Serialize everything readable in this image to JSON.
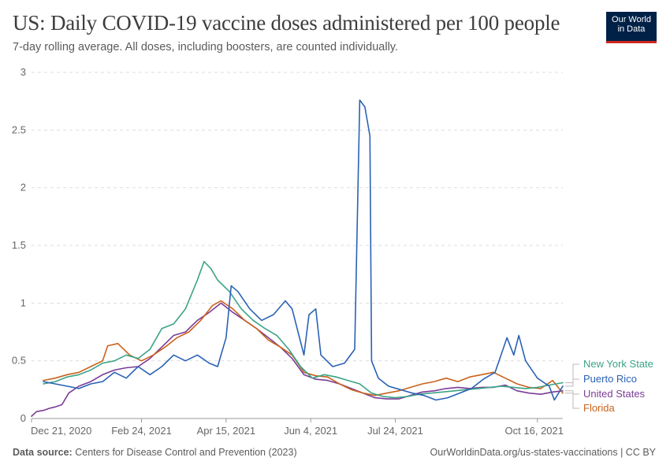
{
  "header": {
    "title": "US: Daily COVID-19 vaccine doses administered per 100 people",
    "subtitle": "7-day rolling average. All doses, including boosters, are counted individually.",
    "logo_line1": "Our World",
    "logo_line2": "in Data"
  },
  "footer": {
    "source_label": "Data source:",
    "source_text": "Centers for Disease Control and Prevention (2023)",
    "link_text": "OurWorldinData.org/us-states-vaccinations | CC BY"
  },
  "colors": {
    "new_york_state": "#3aa387",
    "puerto_rico": "#2a62b4",
    "united_states": "#7b3c96",
    "florida": "#c9621b",
    "logo_bg": "#002147",
    "logo_accent": "#ce261e"
  },
  "chart_data": {
    "type": "line",
    "title": "US: Daily COVID-19 vaccine doses administered per 100 people",
    "subtitle": "7-day rolling average. All doses, including boosters, are counted individually.",
    "x_start": "2020-12-21",
    "x_end": "2021-10-31",
    "x_ticks": [
      "Dec 21, 2020",
      "Feb 24, 2021",
      "Apr 15, 2021",
      "Jun 4, 2021",
      "Jul 24, 2021",
      "Oct 16, 2021"
    ],
    "y_ticks": [
      "0",
      "0.5",
      "1",
      "1.5",
      "2",
      "2.5",
      "3"
    ],
    "ylim": [
      0,
      3
    ],
    "grid": "horizontal dashed",
    "legend": "right, end-of-line labels",
    "series": [
      {
        "name": "New York State",
        "color": "#3aa387",
        "points": [
          [
            "2020-12-28",
            0.3
          ],
          [
            "2021-01-04",
            0.32
          ],
          [
            "2021-01-11",
            0.36
          ],
          [
            "2021-01-18",
            0.38
          ],
          [
            "2021-01-25",
            0.42
          ],
          [
            "2021-02-01",
            0.48
          ],
          [
            "2021-02-08",
            0.5
          ],
          [
            "2021-02-15",
            0.55
          ],
          [
            "2021-02-22",
            0.52
          ],
          [
            "2021-03-01",
            0.6
          ],
          [
            "2021-03-08",
            0.78
          ],
          [
            "2021-03-15",
            0.82
          ],
          [
            "2021-03-22",
            0.95
          ],
          [
            "2021-03-29",
            1.2
          ],
          [
            "2021-04-02",
            1.36
          ],
          [
            "2021-04-06",
            1.3
          ],
          [
            "2021-04-10",
            1.2
          ],
          [
            "2021-04-17",
            1.1
          ],
          [
            "2021-04-24",
            0.95
          ],
          [
            "2021-05-01",
            0.85
          ],
          [
            "2021-05-08",
            0.78
          ],
          [
            "2021-05-15",
            0.72
          ],
          [
            "2021-05-22",
            0.6
          ],
          [
            "2021-05-29",
            0.45
          ],
          [
            "2021-06-05",
            0.35
          ],
          [
            "2021-06-12",
            0.38
          ],
          [
            "2021-06-19",
            0.36
          ],
          [
            "2021-06-26",
            0.33
          ],
          [
            "2021-07-03",
            0.3
          ],
          [
            "2021-07-10",
            0.22
          ],
          [
            "2021-07-17",
            0.19
          ],
          [
            "2021-07-24",
            0.18
          ],
          [
            "2021-07-31",
            0.19
          ],
          [
            "2021-08-07",
            0.21
          ],
          [
            "2021-08-14",
            0.22
          ],
          [
            "2021-08-21",
            0.23
          ],
          [
            "2021-08-28",
            0.24
          ],
          [
            "2021-09-04",
            0.25
          ],
          [
            "2021-09-11",
            0.26
          ],
          [
            "2021-09-18",
            0.27
          ],
          [
            "2021-09-25",
            0.28
          ],
          [
            "2021-10-02",
            0.27
          ],
          [
            "2021-10-09",
            0.26
          ],
          [
            "2021-10-16",
            0.27
          ],
          [
            "2021-10-23",
            0.29
          ],
          [
            "2021-10-31",
            0.31
          ]
        ]
      },
      {
        "name": "Puerto Rico",
        "color": "#2a62b4",
        "points": [
          [
            "2020-12-28",
            0.32
          ],
          [
            "2021-01-04",
            0.3
          ],
          [
            "2021-01-11",
            0.28
          ],
          [
            "2021-01-18",
            0.26
          ],
          [
            "2021-01-25",
            0.3
          ],
          [
            "2021-02-01",
            0.32
          ],
          [
            "2021-02-08",
            0.4
          ],
          [
            "2021-02-15",
            0.35
          ],
          [
            "2021-02-22",
            0.45
          ],
          [
            "2021-03-01",
            0.38
          ],
          [
            "2021-03-08",
            0.45
          ],
          [
            "2021-03-15",
            0.55
          ],
          [
            "2021-03-22",
            0.5
          ],
          [
            "2021-03-29",
            0.55
          ],
          [
            "2021-04-05",
            0.48
          ],
          [
            "2021-04-10",
            0.45
          ],
          [
            "2021-04-15",
            0.7
          ],
          [
            "2021-04-18",
            1.15
          ],
          [
            "2021-04-22",
            1.1
          ],
          [
            "2021-04-29",
            0.95
          ],
          [
            "2021-05-06",
            0.85
          ],
          [
            "2021-05-13",
            0.9
          ],
          [
            "2021-05-20",
            1.02
          ],
          [
            "2021-05-24",
            0.95
          ],
          [
            "2021-05-31",
            0.55
          ],
          [
            "2021-06-03",
            0.9
          ],
          [
            "2021-06-07",
            0.95
          ],
          [
            "2021-06-10",
            0.55
          ],
          [
            "2021-06-17",
            0.45
          ],
          [
            "2021-06-24",
            0.48
          ],
          [
            "2021-06-30",
            0.6
          ],
          [
            "2021-07-03",
            2.76
          ],
          [
            "2021-07-06",
            2.7
          ],
          [
            "2021-07-09",
            2.45
          ],
          [
            "2021-07-10",
            0.5
          ],
          [
            "2021-07-14",
            0.35
          ],
          [
            "2021-07-20",
            0.28
          ],
          [
            "2021-07-27",
            0.25
          ],
          [
            "2021-08-03",
            0.22
          ],
          [
            "2021-08-10",
            0.2
          ],
          [
            "2021-08-17",
            0.16
          ],
          [
            "2021-08-24",
            0.18
          ],
          [
            "2021-08-31",
            0.22
          ],
          [
            "2021-09-07",
            0.26
          ],
          [
            "2021-09-14",
            0.34
          ],
          [
            "2021-09-21",
            0.4
          ],
          [
            "2021-09-28",
            0.7
          ],
          [
            "2021-10-02",
            0.55
          ],
          [
            "2021-10-05",
            0.72
          ],
          [
            "2021-10-09",
            0.5
          ],
          [
            "2021-10-16",
            0.35
          ],
          [
            "2021-10-23",
            0.28
          ],
          [
            "2021-10-26",
            0.16
          ],
          [
            "2021-10-31",
            0.28
          ]
        ]
      },
      {
        "name": "United States",
        "color": "#7b3c96",
        "points": [
          [
            "2020-12-21",
            0.02
          ],
          [
            "2020-12-24",
            0.06
          ],
          [
            "2020-12-28",
            0.07
          ],
          [
            "2021-01-01",
            0.09
          ],
          [
            "2021-01-04",
            0.1
          ],
          [
            "2021-01-08",
            0.12
          ],
          [
            "2021-01-12",
            0.22
          ],
          [
            "2021-01-18",
            0.28
          ],
          [
            "2021-01-25",
            0.32
          ],
          [
            "2021-02-01",
            0.38
          ],
          [
            "2021-02-08",
            0.42
          ],
          [
            "2021-02-15",
            0.44
          ],
          [
            "2021-02-22",
            0.45
          ],
          [
            "2021-03-01",
            0.52
          ],
          [
            "2021-03-08",
            0.62
          ],
          [
            "2021-03-15",
            0.72
          ],
          [
            "2021-03-22",
            0.75
          ],
          [
            "2021-03-29",
            0.85
          ],
          [
            "2021-04-05",
            0.92
          ],
          [
            "2021-04-12",
            1.0
          ],
          [
            "2021-04-19",
            0.92
          ],
          [
            "2021-04-26",
            0.85
          ],
          [
            "2021-05-03",
            0.78
          ],
          [
            "2021-05-10",
            0.7
          ],
          [
            "2021-05-17",
            0.62
          ],
          [
            "2021-05-24",
            0.52
          ],
          [
            "2021-05-31",
            0.38
          ],
          [
            "2021-06-07",
            0.34
          ],
          [
            "2021-06-14",
            0.33
          ],
          [
            "2021-06-21",
            0.3
          ],
          [
            "2021-06-28",
            0.26
          ],
          [
            "2021-07-05",
            0.22
          ],
          [
            "2021-07-12",
            0.18
          ],
          [
            "2021-07-19",
            0.17
          ],
          [
            "2021-07-26",
            0.17
          ],
          [
            "2021-08-02",
            0.2
          ],
          [
            "2021-08-09",
            0.23
          ],
          [
            "2021-08-16",
            0.24
          ],
          [
            "2021-08-23",
            0.26
          ],
          [
            "2021-08-30",
            0.27
          ],
          [
            "2021-09-06",
            0.26
          ],
          [
            "2021-09-13",
            0.27
          ],
          [
            "2021-09-20",
            0.27
          ],
          [
            "2021-09-27",
            0.29
          ],
          [
            "2021-10-04",
            0.24
          ],
          [
            "2021-10-11",
            0.22
          ],
          [
            "2021-10-18",
            0.21
          ],
          [
            "2021-10-25",
            0.23
          ],
          [
            "2021-10-31",
            0.24
          ]
        ]
      },
      {
        "name": "Florida",
        "color": "#c9621b",
        "points": [
          [
            "2020-12-28",
            0.33
          ],
          [
            "2021-01-04",
            0.35
          ],
          [
            "2021-01-11",
            0.38
          ],
          [
            "2021-01-18",
            0.4
          ],
          [
            "2021-01-25",
            0.45
          ],
          [
            "2021-02-01",
            0.5
          ],
          [
            "2021-02-04",
            0.63
          ],
          [
            "2021-02-10",
            0.65
          ],
          [
            "2021-02-17",
            0.55
          ],
          [
            "2021-02-24",
            0.5
          ],
          [
            "2021-03-03",
            0.55
          ],
          [
            "2021-03-10",
            0.62
          ],
          [
            "2021-03-17",
            0.7
          ],
          [
            "2021-03-24",
            0.75
          ],
          [
            "2021-03-31",
            0.85
          ],
          [
            "2021-04-07",
            0.98
          ],
          [
            "2021-04-12",
            1.02
          ],
          [
            "2021-04-19",
            0.95
          ],
          [
            "2021-04-26",
            0.85
          ],
          [
            "2021-05-03",
            0.78
          ],
          [
            "2021-05-10",
            0.68
          ],
          [
            "2021-05-17",
            0.62
          ],
          [
            "2021-05-24",
            0.55
          ],
          [
            "2021-05-31",
            0.4
          ],
          [
            "2021-06-07",
            0.37
          ],
          [
            "2021-06-14",
            0.36
          ],
          [
            "2021-06-21",
            0.3
          ],
          [
            "2021-06-28",
            0.25
          ],
          [
            "2021-07-05",
            0.22
          ],
          [
            "2021-07-12",
            0.2
          ],
          [
            "2021-07-19",
            0.22
          ],
          [
            "2021-07-26",
            0.24
          ],
          [
            "2021-08-02",
            0.27
          ],
          [
            "2021-08-09",
            0.3
          ],
          [
            "2021-08-16",
            0.32
          ],
          [
            "2021-08-23",
            0.35
          ],
          [
            "2021-08-30",
            0.32
          ],
          [
            "2021-09-06",
            0.36
          ],
          [
            "2021-09-13",
            0.38
          ],
          [
            "2021-09-20",
            0.4
          ],
          [
            "2021-09-27",
            0.35
          ],
          [
            "2021-10-04",
            0.3
          ],
          [
            "2021-10-11",
            0.27
          ],
          [
            "2021-10-18",
            0.26
          ],
          [
            "2021-10-25",
            0.33
          ],
          [
            "2021-10-31",
            0.22
          ]
        ]
      }
    ]
  }
}
